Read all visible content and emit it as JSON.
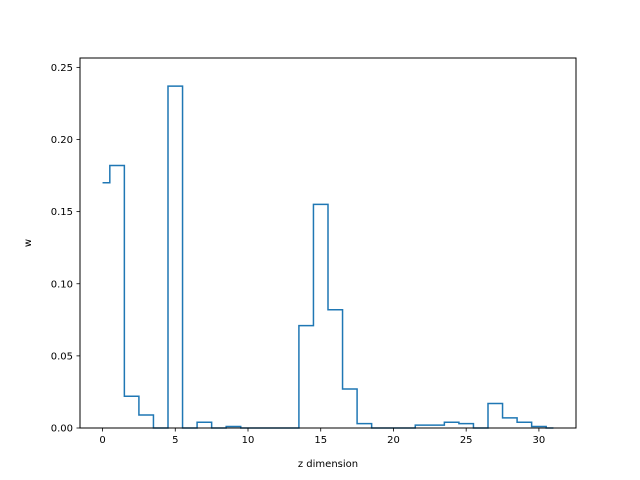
{
  "chart_data": {
    "type": "line",
    "style": "step-mid",
    "title": "",
    "xlabel": "z dimension",
    "ylabel": "w",
    "xlim": [
      -1.55,
      32.55
    ],
    "ylim": [
      0,
      0.2565
    ],
    "xticks": [
      0,
      5,
      10,
      15,
      20,
      25,
      30
    ],
    "xtick_labels": [
      "0",
      "5",
      "10",
      "15",
      "20",
      "25",
      "30"
    ],
    "yticks": [
      0,
      0.05,
      0.1,
      0.15,
      0.2,
      0.25
    ],
    "ytick_labels": [
      "0.00",
      "0.05",
      "0.10",
      "0.15",
      "0.20",
      "0.25"
    ],
    "grid": false,
    "color": "#1f77b4",
    "series": [
      {
        "x": [
          0,
          1,
          2,
          3,
          4,
          5,
          6,
          7,
          8,
          9,
          10,
          11,
          12,
          13,
          14,
          15,
          16,
          17,
          18,
          19,
          20,
          21,
          22,
          23,
          24,
          25,
          26,
          27,
          28,
          29,
          30,
          31
        ],
        "values": [
          0.17,
          0.182,
          0.022,
          0.009,
          0.0,
          0.237,
          0.0,
          0.004,
          0.0,
          0.001,
          0.0,
          0.0,
          0.0,
          0.0,
          0.071,
          0.155,
          0.082,
          0.027,
          0.003,
          0.0,
          0.0,
          0.0,
          0.002,
          0.002,
          0.004,
          0.003,
          0.0,
          0.017,
          0.007,
          0.004,
          0.001,
          0.0
        ]
      }
    ]
  }
}
